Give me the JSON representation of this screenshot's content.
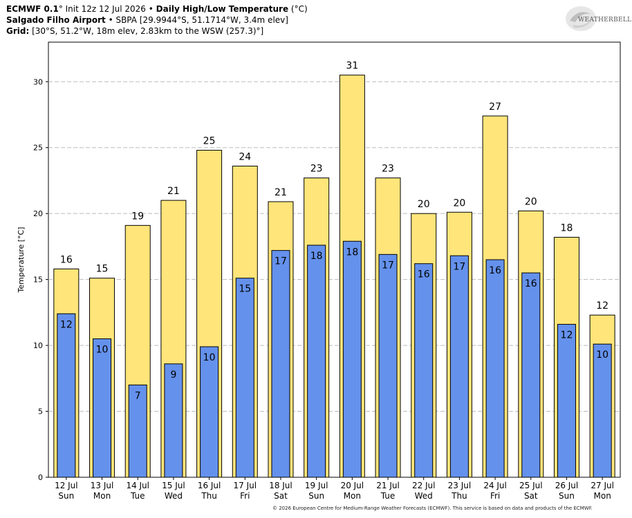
{
  "header": {
    "model": "ECMWF 0.1",
    "model_suffix": "° Init 12z 12 Jul 2026 • ",
    "product": "Daily High/Low Temperature",
    "product_units": " (°C)",
    "station_name": "Salgado Filho Airport",
    "station_details": " • SBPA [29.9944°S, 51.1714°W, 3.4m elev]",
    "grid_label": "Grid:",
    "grid_details": " [30°S, 51.2°W, 18m elev, 2.83km to the WSW (257.3)°]"
  },
  "logo": {
    "text": "WEATHERBELL",
    "icon": "weatherbell-swirl-logo"
  },
  "footer": {
    "copyright": "© 2026 European Centre for Medium-Range Weather Forecasts (ECMWF). This service is based on data and products of the ECMWF."
  },
  "colors": {
    "high": "#FFE57A",
    "low": "#6491EC",
    "grid": "#bbbbbb",
    "outline": "#000000"
  },
  "chart_data": {
    "type": "bar",
    "ylabel": "Temperature [°C]",
    "ylim": [
      0,
      33
    ],
    "yticks": [
      0,
      5,
      10,
      15,
      20,
      25,
      30
    ],
    "grid": true,
    "categories": [
      {
        "date": "12 Jul",
        "day": "Sun"
      },
      {
        "date": "13 Jul",
        "day": "Mon"
      },
      {
        "date": "14 Jul",
        "day": "Tue"
      },
      {
        "date": "15 Jul",
        "day": "Wed"
      },
      {
        "date": "16 Jul",
        "day": "Thu"
      },
      {
        "date": "17 Jul",
        "day": "Fri"
      },
      {
        "date": "18 Jul",
        "day": "Sat"
      },
      {
        "date": "19 Jul",
        "day": "Sun"
      },
      {
        "date": "20 Jul",
        "day": "Mon"
      },
      {
        "date": "21 Jul",
        "day": "Tue"
      },
      {
        "date": "22 Jul",
        "day": "Wed"
      },
      {
        "date": "23 Jul",
        "day": "Thu"
      },
      {
        "date": "24 Jul",
        "day": "Fri"
      },
      {
        "date": "25 Jul",
        "day": "Sat"
      },
      {
        "date": "26 Jul",
        "day": "Sun"
      },
      {
        "date": "27 Jul",
        "day": "Mon"
      }
    ],
    "series": [
      {
        "name": "High",
        "values": [
          15.8,
          15.1,
          19.1,
          21.0,
          24.8,
          23.6,
          20.9,
          22.7,
          30.5,
          22.7,
          20.0,
          20.1,
          27.4,
          20.2,
          18.2,
          12.3
        ],
        "labels": [
          "16",
          "15",
          "19",
          "21",
          "25",
          "24",
          "21",
          "23",
          "31",
          "23",
          "20",
          "20",
          "27",
          "20",
          "18",
          "12"
        ]
      },
      {
        "name": "Low",
        "values": [
          12.4,
          10.5,
          7.0,
          8.6,
          9.9,
          15.1,
          17.2,
          17.6,
          17.9,
          16.9,
          16.2,
          16.8,
          16.5,
          15.5,
          11.6,
          10.1
        ],
        "labels": [
          "12",
          "10",
          "7",
          "9",
          "10",
          "15",
          "17",
          "18",
          "18",
          "17",
          "16",
          "17",
          "16",
          "16",
          "12",
          "10"
        ]
      }
    ]
  }
}
